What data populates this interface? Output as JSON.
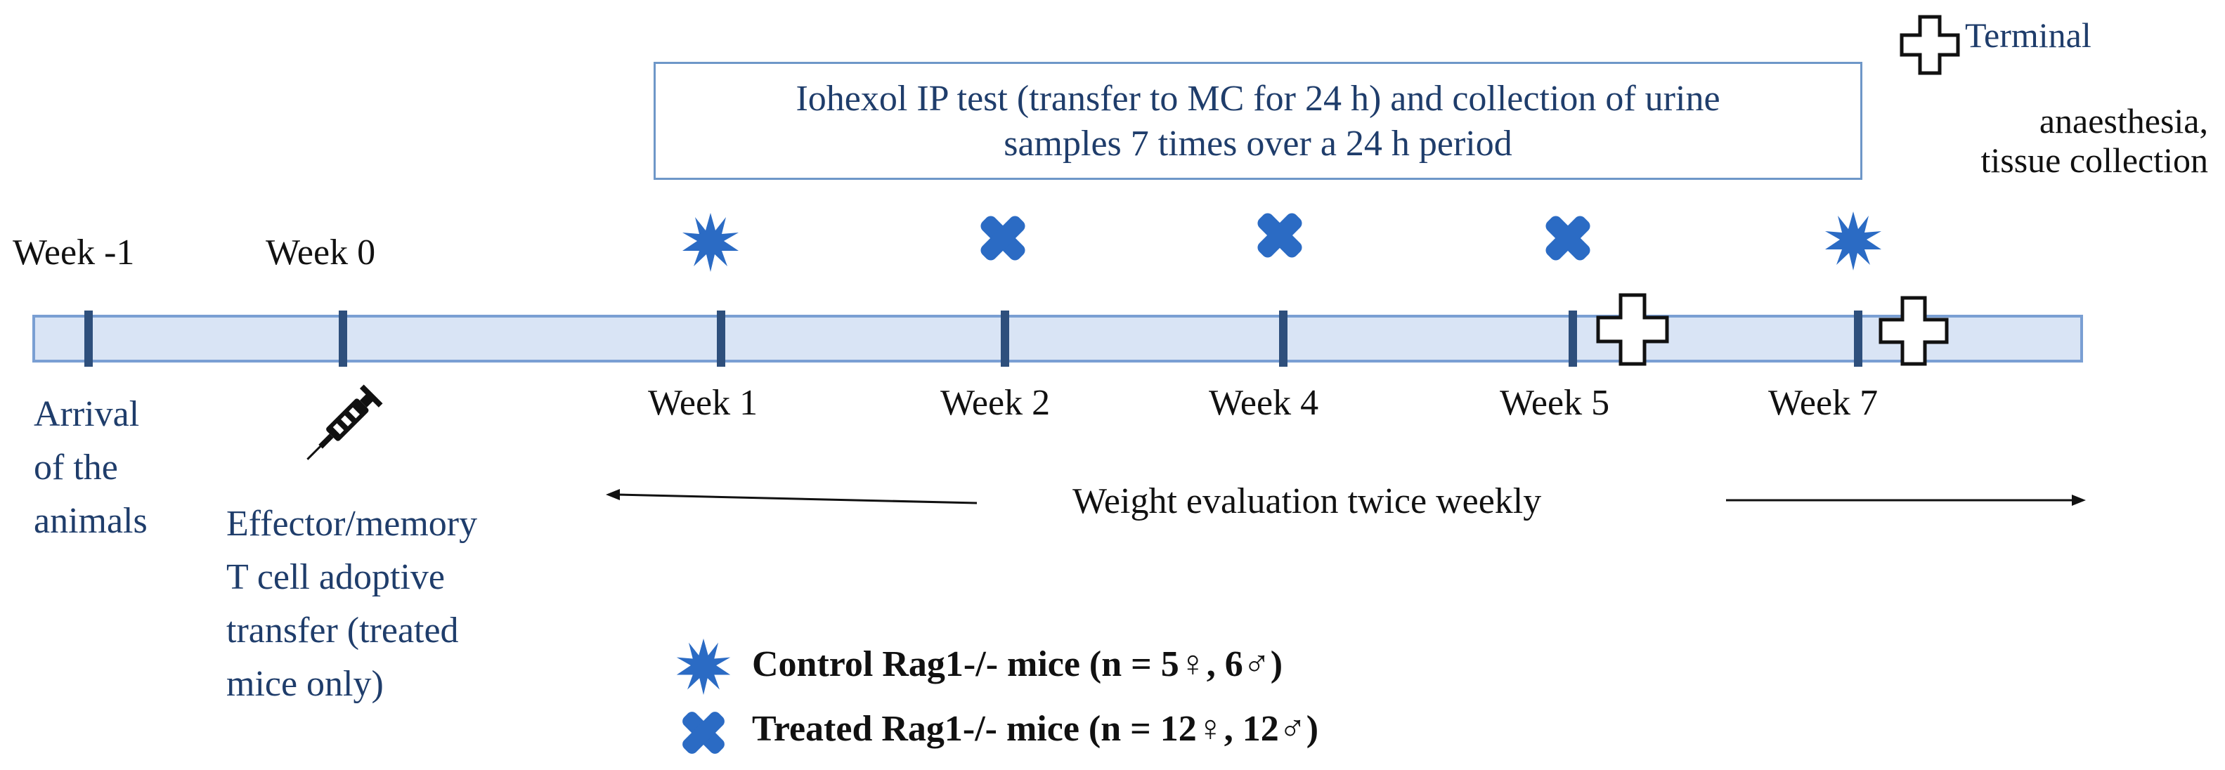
{
  "iohexol_box": {
    "line1": "Iohexol IP test (transfer to MC for 24 h) and collection of urine",
    "line2": "samples 7 times over a 24 h period"
  },
  "terminal": {
    "line1": "Terminal",
    "line2": "anaesthesia,",
    "line3": "tissue collection"
  },
  "timeline": {
    "top_labels": [
      "Week -1",
      "Week 0"
    ],
    "bottom_labels": [
      "Week 1",
      "Week 2",
      "Week 4",
      "Week 5",
      "Week 7"
    ]
  },
  "arrival": {
    "line1": "Arrival",
    "line2": "of the",
    "line3": "animals"
  },
  "transfer": {
    "line1": "Effector/memory",
    "line2": "T cell adoptive",
    "line3": "transfer (treated",
    "line4": "mice only)"
  },
  "weight_label": "Weight evaluation twice weekly",
  "legend": {
    "control": "Control Rag1-/- mice (n = 5♀, 6♂)",
    "treated": "Treated Rag1-/- mice (n = 12♀, 12♂)"
  },
  "icons": {
    "control_marker": "starburst-icon",
    "treated_marker": "cross-x-icon",
    "terminal_marker": "plus-icon",
    "injection_marker": "syringe-icon"
  },
  "colors": {
    "marker_blue": "#2b6bc4",
    "text_blue": "#1f3d6b",
    "bar_fill": "#d9e4f5",
    "tick": "#2e4f7c"
  }
}
